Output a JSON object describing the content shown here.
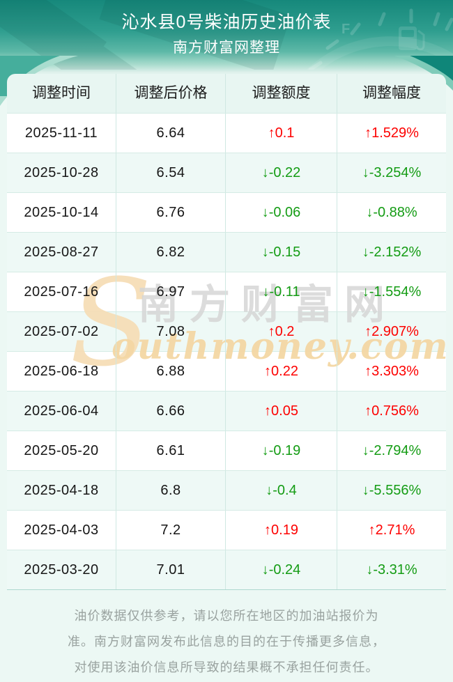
{
  "header": {
    "title": "沁水县0号柴油历史油价表",
    "subtitle": "南方财富网整理"
  },
  "table": {
    "columns": [
      "调整时间",
      "调整后价格",
      "调整额度",
      "调整幅度"
    ],
    "rows": [
      {
        "date": "2025-11-11",
        "price": "6.64",
        "change": "↑0.1",
        "pct": "↑1.529%",
        "dir": "up"
      },
      {
        "date": "2025-10-28",
        "price": "6.54",
        "change": "↓-0.22",
        "pct": "↓-3.254%",
        "dir": "down"
      },
      {
        "date": "2025-10-14",
        "price": "6.76",
        "change": "↓-0.06",
        "pct": "↓-0.88%",
        "dir": "down"
      },
      {
        "date": "2025-08-27",
        "price": "6.82",
        "change": "↓-0.15",
        "pct": "↓-2.152%",
        "dir": "down"
      },
      {
        "date": "2025-07-16",
        "price": "6.97",
        "change": "↓-0.11",
        "pct": "↓-1.554%",
        "dir": "down"
      },
      {
        "date": "2025-07-02",
        "price": "7.08",
        "change": "↑0.2",
        "pct": "↑2.907%",
        "dir": "up"
      },
      {
        "date": "2025-06-18",
        "price": "6.88",
        "change": "↑0.22",
        "pct": "↑3.303%",
        "dir": "up"
      },
      {
        "date": "2025-06-04",
        "price": "6.66",
        "change": "↑0.05",
        "pct": "↑0.756%",
        "dir": "up"
      },
      {
        "date": "2025-05-20",
        "price": "6.61",
        "change": "↓-0.19",
        "pct": "↓-2.794%",
        "dir": "down"
      },
      {
        "date": "2025-04-18",
        "price": "6.8",
        "change": "↓-0.4",
        "pct": "↓-5.556%",
        "dir": "down"
      },
      {
        "date": "2025-04-03",
        "price": "7.2",
        "change": "↑0.19",
        "pct": "↑2.71%",
        "dir": "up"
      },
      {
        "date": "2025-03-20",
        "price": "7.01",
        "change": "↓-0.24",
        "pct": "↓-3.31%",
        "dir": "down"
      }
    ]
  },
  "watermark": {
    "s": "S",
    "cjk": "南方财富网",
    "script": "outhmoney.com"
  },
  "footer": {
    "lines": [
      "油价数据仅供参考，请以您所在地区的加油站报价为",
      "准。南方财富网发布此信息的目的在于传播更多信息，",
      "对使用该油价信息所导致的结果概不承担任何责任。"
    ]
  },
  "colors": {
    "up_red": "#fd0100",
    "down_green": "#149c14",
    "header_teal_top": "#16887b",
    "page_bg": "#ecf8f4",
    "stripe_bg": "#eef9f6",
    "thead_bg": "#e8f6f2",
    "border": "#cfe8e2",
    "watermark_gray": "#d6d6d6",
    "watermark_tan": "#f4d7a4",
    "footer_gray": "#99a29f"
  },
  "chart_data": {
    "type": "table",
    "title": "沁水县0号柴油历史油价表",
    "subtitle": "南方财富网整理",
    "columns": [
      "调整时间",
      "调整后价格",
      "调整额度",
      "调整幅度"
    ],
    "rows": [
      [
        "2025-11-11",
        "6.64",
        "↑0.1",
        "↑1.529%"
      ],
      [
        "2025-10-28",
        "6.54",
        "↓-0.22",
        "↓-3.254%"
      ],
      [
        "2025-10-14",
        "6.76",
        "↓-0.06",
        "↓-0.88%"
      ],
      [
        "2025-08-27",
        "6.82",
        "↓-0.15",
        "↓-2.152%"
      ],
      [
        "2025-07-16",
        "6.97",
        "↓-0.11",
        "↓-1.554%"
      ],
      [
        "2025-07-02",
        "7.08",
        "↑0.2",
        "↑2.907%"
      ],
      [
        "2025-06-18",
        "6.88",
        "↑0.22",
        "↑3.303%"
      ],
      [
        "2025-06-04",
        "6.66",
        "↑0.05",
        "↑0.756%"
      ],
      [
        "2025-05-20",
        "6.61",
        "↓-0.19",
        "↓-2.794%"
      ],
      [
        "2025-04-18",
        "6.8",
        "↓-0.4",
        "↓-5.556%"
      ],
      [
        "2025-04-03",
        "7.2",
        "↑0.19",
        "↑2.71%"
      ],
      [
        "2025-03-20",
        "7.01",
        "↓-0.24",
        "↓-3.31%"
      ]
    ]
  }
}
